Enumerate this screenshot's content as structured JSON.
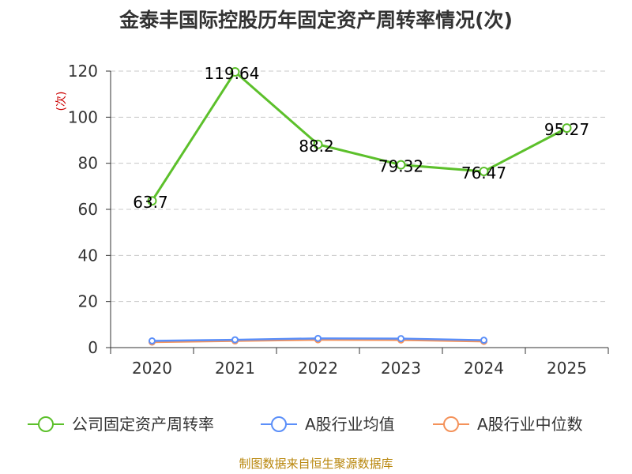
{
  "chart_data": {
    "type": "line",
    "title": "金泰丰国际控股历年固定资产周转率情况(次)",
    "ylabel": "(次)",
    "xlabel": "",
    "categories": [
      "2020",
      "2021",
      "2022",
      "2023",
      "2024",
      "2025"
    ],
    "ylim": [
      0,
      120
    ],
    "yticks": [
      0,
      20,
      40,
      60,
      80,
      100,
      120
    ],
    "grid": true,
    "legend_position": "bottom",
    "series": [
      {
        "name": "公司固定资产周转率",
        "color": "#5cc02b",
        "values": [
          63.7,
          119.64,
          88.2,
          79.32,
          76.47,
          95.27
        ],
        "labels": [
          "63.7",
          "119.64",
          "88.2",
          "79.32",
          "76.47",
          "95.27"
        ]
      },
      {
        "name": "A股行业均值",
        "color": "#5b8ff9",
        "values": [
          2.9,
          3.4,
          4.0,
          3.9,
          3.2,
          null
        ]
      },
      {
        "name": "A股行业中位数",
        "color": "#f4925a",
        "values": [
          2.4,
          2.9,
          3.4,
          3.3,
          2.7,
          null
        ]
      }
    ],
    "source": "制图数据来自恒生聚源数据库"
  }
}
